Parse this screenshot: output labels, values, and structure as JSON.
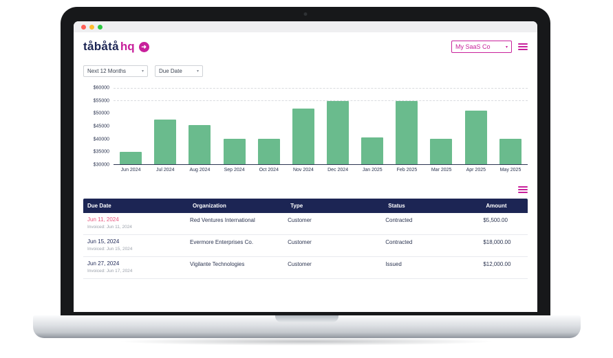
{
  "colors": {
    "accent_pink": "#c8209b",
    "navy": "#1c2554",
    "bar_green": "#6abb8d",
    "due_date_highlight": "#e8547d"
  },
  "icons": {
    "logo_arrow": "➜",
    "select_caret": "▾",
    "menu_icon": "hamburger",
    "window_controls": [
      "close",
      "minimize",
      "zoom"
    ]
  },
  "header": {
    "logo_primary": "tåbåtå",
    "logo_accent": "hq",
    "org_select_value": "My SaaS Co"
  },
  "filters": {
    "range_select_value": "Next 12 Months",
    "sort_select_value": "Due Date"
  },
  "chart_data": {
    "type": "bar",
    "title": "",
    "xlabel": "",
    "ylabel": "",
    "categories": [
      "Jun 2024",
      "Jul 2024",
      "Aug 2024",
      "Sep 2024",
      "Oct 2024",
      "Nov 2024",
      "Dec 2024",
      "Jan 2025",
      "Feb 2025",
      "Mar 2025",
      "Apr 2025",
      "May 2025"
    ],
    "values": [
      35000,
      47500,
      45500,
      40000,
      40000,
      52000,
      55000,
      40500,
      55000,
      40000,
      51000,
      40000
    ],
    "ylim": [
      30000,
      60000
    ],
    "y_ticks": [
      "$60000",
      "$55000",
      "$50000",
      "$45000",
      "$40000",
      "$35000",
      "$30000"
    ],
    "y_tick_values": [
      60000,
      55000,
      50000,
      45000,
      40000,
      35000,
      30000
    ],
    "gridlines_at": [
      60000,
      55000
    ],
    "grid": "dashed-top-only",
    "legend": "none",
    "bar_color": "#6abb8d"
  },
  "table": {
    "headers": [
      "Due Date",
      "Organization",
      "Type",
      "Status",
      "Amount"
    ],
    "rows": [
      {
        "due_date": "Jun 11, 2024",
        "invoiced": "Invoiced: Jun 11, 2024",
        "organization": "Red Ventures International",
        "type": "Customer",
        "status": "Contracted",
        "amount": "$5,500.00",
        "due_date_highlighted": true
      },
      {
        "due_date": "Jun 15, 2024",
        "invoiced": "Invoiced: Jun 15, 2024",
        "organization": "Evermore Enterprises Co.",
        "type": "Customer",
        "status": "Contracted",
        "amount": "$18,000.00",
        "due_date_highlighted": false
      },
      {
        "due_date": "Jun 27, 2024",
        "invoiced": "Invoiced: Jun 17, 2024",
        "organization": "Vigilante Technologies",
        "type": "Customer",
        "status": "Issued",
        "amount": "$12,000.00",
        "due_date_highlighted": false
      }
    ]
  }
}
